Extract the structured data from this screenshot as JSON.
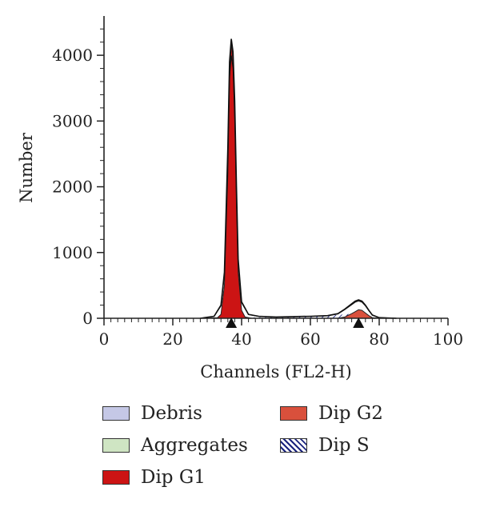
{
  "chart_data": {
    "type": "area",
    "title": "",
    "xlabel": "Channels (FL2-H)",
    "ylabel": "Number",
    "xlim": [
      0,
      100
    ],
    "ylim": [
      0,
      4500
    ],
    "x_ticks": [
      0,
      20,
      40,
      60,
      80,
      100
    ],
    "y_ticks": [
      0,
      1000,
      2000,
      3000,
      4000
    ],
    "x_tick_labels": [
      "0",
      "20",
      "40",
      "60",
      "80",
      "100"
    ],
    "y_tick_labels": [
      "0",
      "1000",
      "2000",
      "3000",
      "4000"
    ],
    "grid": false,
    "legend_position": "bottom",
    "markers": [
      37,
      74
    ],
    "series": [
      {
        "name": "Debris",
        "color": "#c5c8e6",
        "x": [
          0,
          100
        ],
        "values": [
          0,
          0
        ]
      },
      {
        "name": "Aggregates",
        "color": "#cfe5c3",
        "x": [
          0,
          100
        ],
        "values": [
          0,
          0
        ]
      },
      {
        "name": "Dip G1",
        "color": "#cc1414",
        "x": [
          30,
          33,
          34,
          35,
          36,
          36.5,
          37,
          37.5,
          38,
          38.5,
          39,
          40,
          41,
          43
        ],
        "values": [
          0,
          10,
          60,
          500,
          2200,
          3600,
          4200,
          3900,
          3000,
          1700,
          700,
          120,
          20,
          0
        ]
      },
      {
        "name": "Dip G2",
        "color": "#d9503c",
        "x": [
          68,
          70,
          72,
          73,
          74,
          75,
          76,
          77,
          78,
          80
        ],
        "values": [
          0,
          20,
          70,
          100,
          130,
          120,
          80,
          40,
          10,
          0
        ]
      },
      {
        "name": "Dip S",
        "color": "#1a237e",
        "x": [
          40,
          50,
          60,
          65,
          70,
          72,
          75
        ],
        "values": [
          10,
          20,
          30,
          40,
          60,
          70,
          60
        ]
      }
    ],
    "envelope": {
      "x": [
        28,
        32,
        34,
        35,
        36,
        36.5,
        37,
        37.5,
        38,
        38.5,
        39,
        40,
        42,
        45,
        50,
        55,
        60,
        65,
        68,
        70,
        72,
        73,
        74,
        75,
        76,
        77,
        78,
        80,
        85
      ],
      "values": [
        0,
        30,
        200,
        700,
        2600,
        3900,
        4250,
        4050,
        3300,
        2000,
        900,
        250,
        60,
        30,
        20,
        25,
        30,
        40,
        70,
        140,
        220,
        260,
        280,
        260,
        200,
        120,
        50,
        10,
        0
      ]
    }
  }
}
